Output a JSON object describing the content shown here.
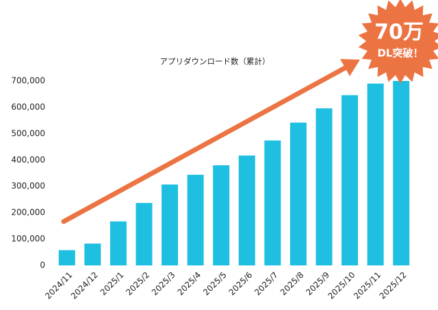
{
  "chart_data": {
    "type": "bar",
    "title": "アプリダウンロード数（累計）",
    "annotations": [
      "70万",
      "DL突破！"
    ],
    "categories": [
      "2024/11",
      "2024/12",
      "2025/1",
      "2025/2",
      "2025/3",
      "2025/4",
      "2025/5",
      "2025/6",
      "2025/7",
      "2025/8",
      "2025/9",
      "2025/10",
      "2025/11",
      "2025/12"
    ],
    "values": [
      58000,
      83000,
      167000,
      237000,
      307000,
      344000,
      380000,
      417000,
      474000,
      542000,
      596000,
      646000,
      690000,
      700000
    ],
    "color": "#1fbfe2",
    "ylim": [
      0,
      700000
    ],
    "yticks": [
      0,
      {
        "value": 100000,
        "label": "100,000"
      },
      {
        "value": 200000,
        "label": "200,000"
      },
      {
        "value": 300000,
        "label": "300,000"
      },
      {
        "value": 400000,
        "label": "400,000"
      },
      {
        "value": 500000,
        "label": "500,000"
      },
      {
        "value": 600000,
        "label": "600,000"
      },
      {
        "value": 700000,
        "label": "700,000"
      }
    ],
    "grid": false,
    "annotation_color": "#ec7443"
  }
}
